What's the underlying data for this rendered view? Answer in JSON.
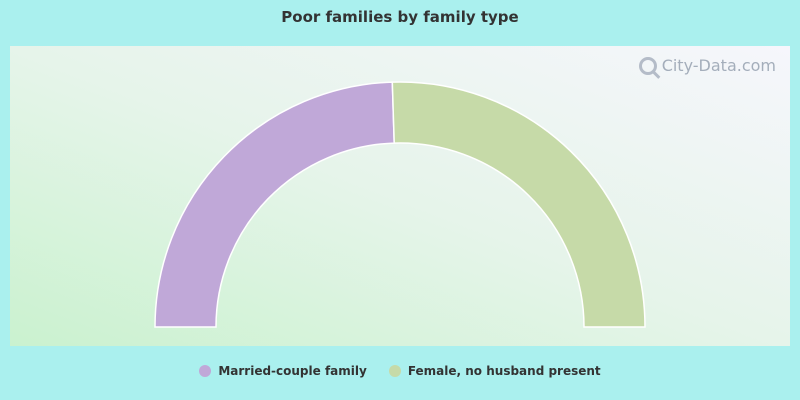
{
  "chart_data": {
    "type": "pie",
    "subtype": "semi-donut",
    "title": "Poor families by family type",
    "series": [
      {
        "name": "Married-couple family",
        "value": 49,
        "color": "#c0a8d8"
      },
      {
        "name": "Female, no husband present",
        "value": 51,
        "color": "#c6daa8"
      }
    ],
    "legend_position": "bottom"
  },
  "watermark": {
    "text": "City-Data.com",
    "icon": "magnifier-icon"
  },
  "colors": {
    "page_background": "#aaf0ee",
    "title_color": "#333333"
  }
}
